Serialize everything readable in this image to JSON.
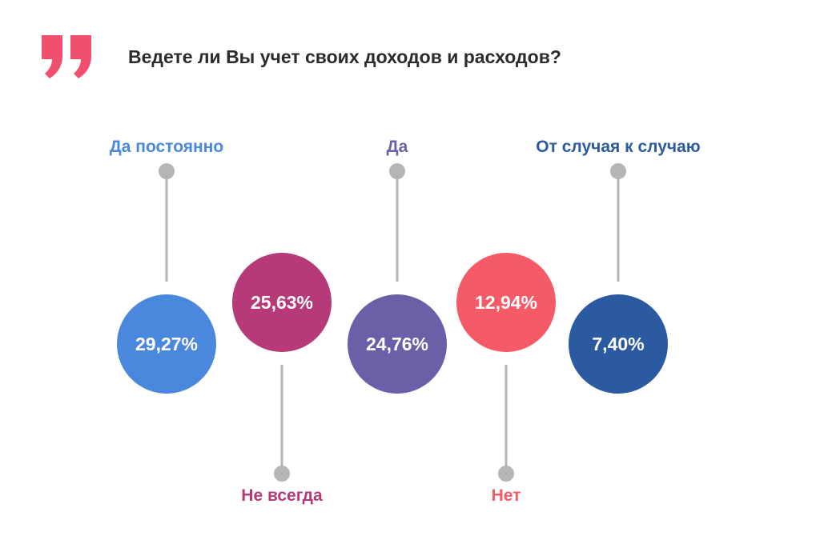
{
  "title": "Ведете ли Вы учет своих доходов и расходов?",
  "quote_icon": {
    "name": "quote-icon",
    "color": "#f0506e"
  },
  "chart_data": {
    "type": "bubble",
    "title": "Ведете ли Вы учет своих доходов и расходов?",
    "unit": "%",
    "categories": [
      "Да постоянно",
      "Не всегда",
      "Да",
      "Нет",
      "От случая к случаю"
    ],
    "values": [
      29.27,
      25.63,
      24.76,
      12.94,
      7.4
    ],
    "value_labels": [
      "29,27%",
      "25,63%",
      "24,76%",
      "12,94%",
      "7,40%"
    ],
    "label_positions": [
      "top",
      "bottom",
      "top",
      "bottom",
      "top"
    ],
    "colors": [
      "#4a88de",
      "#b73a78",
      "#6b5fa8",
      "#f45b67",
      "#2b5aa0"
    ],
    "connector_color": "#b5b5b5"
  }
}
